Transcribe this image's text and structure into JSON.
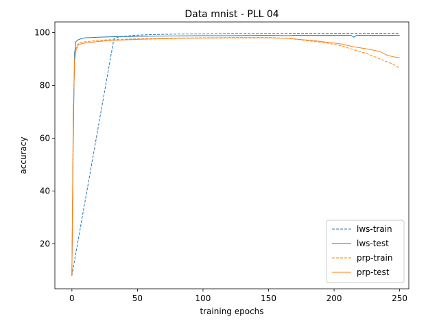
{
  "chart_data": {
    "type": "line",
    "title": "Data mnist - PLL 04",
    "xlabel": "training epochs",
    "ylabel": "accuracy",
    "xlim": [
      -13,
      257
    ],
    "ylim": [
      3,
      104
    ],
    "xticks": [
      0,
      50,
      100,
      150,
      200,
      250
    ],
    "yticks": [
      20,
      40,
      60,
      80,
      100
    ],
    "grid": false,
    "legend_position": "lower-right",
    "series": [
      {
        "name": "lws-train",
        "color": "#1f77b4",
        "dash": "dashed",
        "x": [
          0,
          32,
          35,
          40,
          50,
          60,
          80,
          100,
          120,
          150,
          170,
          200,
          220,
          250
        ],
        "y": [
          8,
          97.5,
          98.2,
          98.6,
          99.0,
          99.2,
          99.4,
          99.5,
          99.6,
          99.6,
          99.7,
          99.7,
          99.7,
          99.7
        ]
      },
      {
        "name": "lws-test",
        "color": "#1f77b4",
        "dash": "solid",
        "x": [
          0,
          1,
          2,
          3,
          5,
          8,
          10,
          15,
          20,
          30,
          40,
          60,
          80,
          100,
          120,
          150,
          165,
          170,
          200,
          213,
          215,
          217,
          230,
          250
        ],
        "y": [
          8,
          60,
          92,
          96.5,
          97.3,
          97.8,
          98.0,
          98.1,
          98.2,
          98.4,
          98.5,
          98.6,
          98.7,
          98.8,
          98.8,
          98.9,
          98.8,
          98.9,
          98.9,
          98.9,
          98.2,
          98.9,
          98.9,
          98.9
        ]
      },
      {
        "name": "prp-train",
        "color": "#ff7f0e",
        "dash": "dashed",
        "x": [
          0,
          1,
          2,
          3,
          5,
          10,
          20,
          30,
          50,
          80,
          100,
          130,
          150,
          165,
          175,
          185,
          195,
          205,
          215,
          225,
          235,
          240,
          245,
          250
        ],
        "y": [
          8,
          70,
          90,
          94,
          96,
          96.5,
          97.0,
          97.3,
          97.6,
          97.9,
          98.0,
          98.1,
          98.1,
          97.8,
          97.2,
          96.6,
          96.0,
          95.0,
          93.5,
          92.0,
          90.0,
          89.0,
          88.0,
          86.5
        ]
      },
      {
        "name": "prp-test",
        "color": "#ff7f0e",
        "dash": "solid",
        "x": [
          0,
          1,
          2,
          3,
          5,
          10,
          20,
          30,
          50,
          80,
          100,
          130,
          150,
          165,
          175,
          185,
          195,
          205,
          215,
          225,
          235,
          240,
          245,
          250
        ],
        "y": [
          8,
          68,
          89,
          93,
          95.5,
          96.0,
          96.6,
          97.0,
          97.4,
          97.8,
          97.9,
          98.0,
          98.0,
          97.8,
          97.3,
          96.9,
          96.3,
          95.7,
          94.6,
          93.8,
          92.8,
          91.5,
          90.8,
          90.5
        ]
      }
    ]
  }
}
